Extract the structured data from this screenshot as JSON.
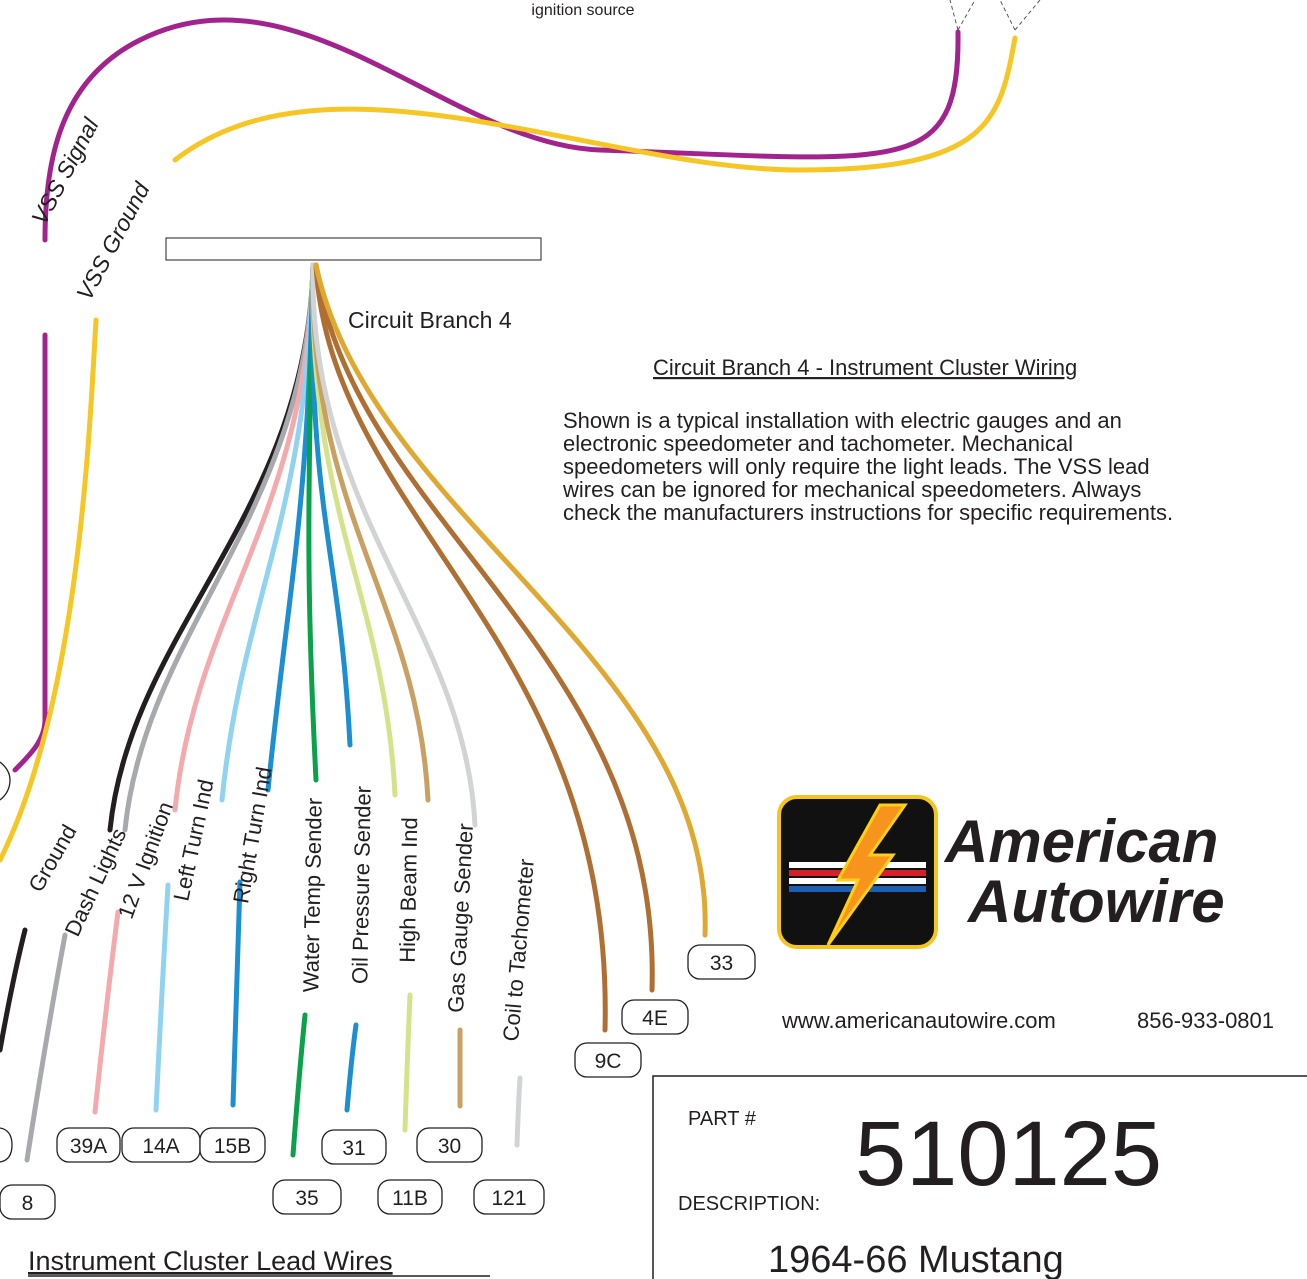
{
  "header": {
    "note": "ignition source"
  },
  "vss": {
    "signal": {
      "label": "VSS Signal",
      "color": "#a3238e"
    },
    "ground": {
      "label": "VSS Ground",
      "color": "#f6c624"
    }
  },
  "branch_label": "Circuit Branch 4",
  "section": {
    "title": "Circuit Branch 4 - Instrument Cluster Wiring",
    "body": [
      "Shown is a typical installation with electric gauges and an",
      "electronic speedometer and tachometer. Mechanical",
      "speedometers will only require the light leads. The VSS lead",
      "wires can be ignored for mechanical speedometers. Always",
      "check the manufacturers instructions for specific requirements."
    ]
  },
  "wires": [
    {
      "label": "Ground",
      "color": "#231f20"
    },
    {
      "label": "Dash Lights",
      "circuit": "8",
      "color": "#a7a9ac"
    },
    {
      "label": "12 V Ignition",
      "circuit": "39A",
      "color": "#f4a9ad"
    },
    {
      "label": "Left Turn Ind",
      "circuit": "14A",
      "color": "#8fd3f0"
    },
    {
      "label": "Right Turn Ind",
      "circuit": "15B",
      "color": "#1b8fd1"
    },
    {
      "label": "Water Temp Sender",
      "circuit": "35",
      "color": "#0aa14b"
    },
    {
      "label": "Oil Pressure Sender",
      "circuit": "31",
      "color": "#1b8fd1"
    },
    {
      "label": "High Beam Ind",
      "circuit": "11B",
      "color": "#d4e38a"
    },
    {
      "label": "Gas Gauge Sender",
      "circuit": "30",
      "color": "#c9a061"
    },
    {
      "label": "Coil to Tachometer",
      "circuit": "121",
      "color": "#d1d3d4"
    }
  ],
  "loose_wires": [
    {
      "circuit": "9C",
      "color": "#b06f32"
    },
    {
      "circuit": "4E",
      "color": "#b06f32"
    },
    {
      "circuit": "33",
      "color": "#e0a830"
    }
  ],
  "logo": {
    "line1": "American",
    "line2": "Autowire"
  },
  "contact": {
    "url": "www.americanautowire.com",
    "phone": "856-933-0801"
  },
  "part": {
    "part_label": "PART #",
    "number": "510125",
    "description_label": "DESCRIPTION:",
    "description": "1964-66 Mustang"
  },
  "footer": "Instrument Cluster Lead Wires"
}
